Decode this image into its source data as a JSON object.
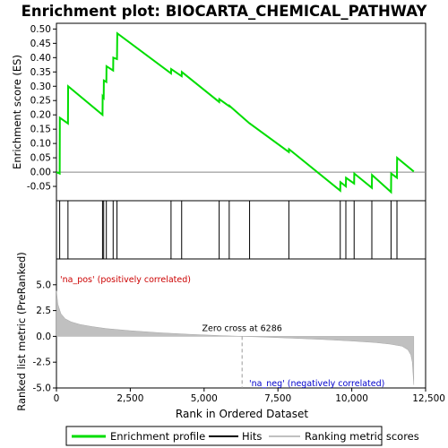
{
  "chart_data": {
    "type": "line",
    "title": "Enrichment plot: BIOCARTA_CHEMICAL_PATHWAY",
    "es_panel": {
      "ylabel": "Enrichment score (ES)",
      "ylim": [
        -0.1,
        0.52
      ],
      "yticks": [
        -0.05,
        0.0,
        0.05,
        0.1,
        0.15,
        0.2,
        0.25,
        0.3,
        0.35,
        0.4,
        0.45,
        0.5
      ],
      "ytick_labels": [
        "-0.05",
        "0.00",
        "0.05",
        "0.10",
        "0.15",
        "0.20",
        "0.25",
        "0.30",
        "0.35",
        "0.40",
        "0.45",
        "0.50"
      ],
      "series": [
        {
          "name": "Enrichment profile",
          "color": "#00dd00",
          "x": [
            0,
            110,
            115,
            390,
            395,
            1560,
            1565,
            1600,
            1605,
            1690,
            1695,
            1920,
            1925,
            2050,
            2055,
            2060,
            3880,
            3885,
            4240,
            4245,
            5510,
            5515,
            5850,
            5855,
            6540,
            6545,
            7870,
            7875,
            9610,
            9615,
            9800,
            9805,
            10080,
            10085,
            10680,
            10685,
            11330,
            11335,
            11530,
            11535,
            12100
          ],
          "y": [
            0.0,
            -0.005,
            0.19,
            0.17,
            0.3,
            0.2,
            0.265,
            0.26,
            0.32,
            0.315,
            0.37,
            0.355,
            0.4,
            0.395,
            0.44,
            0.485,
            0.345,
            0.36,
            0.335,
            0.35,
            0.245,
            0.255,
            0.23,
            0.232,
            0.17,
            0.17,
            0.07,
            0.08,
            -0.065,
            -0.035,
            -0.05,
            -0.02,
            -0.04,
            -0.005,
            -0.055,
            -0.01,
            -0.07,
            -0.005,
            -0.02,
            0.05,
            0.002
          ]
        }
      ]
    },
    "hits_panel": {
      "series_name": "Hits",
      "hit_positions": [
        110,
        390,
        1560,
        1600,
        1690,
        1920,
        2050,
        3880,
        4240,
        5510,
        5850,
        6540,
        7870,
        9610,
        9800,
        10080,
        10680,
        11330,
        11530
      ]
    },
    "rank_panel": {
      "ylabel": "Ranked list metric (PreRanked)",
      "xlabel": "Rank in Ordered Dataset",
      "xlim": [
        0,
        12500
      ],
      "xticks": [
        0,
        2500,
        5000,
        7500,
        10000,
        12500
      ],
      "xtick_labels": [
        "0",
        "2,500",
        "5,000",
        "7,500",
        "10,000",
        "12,500"
      ],
      "ylim": [
        -5.0,
        7.5
      ],
      "yticks": [
        -5.0,
        -2.5,
        0.0,
        2.5,
        5.0
      ],
      "ytick_labels": [
        "-5.0",
        "-2.5",
        "0.0",
        "2.5",
        "5.0"
      ],
      "series_name": "Ranking metric scores",
      "x": [
        0,
        50,
        150,
        300,
        500,
        800,
        1200,
        1700,
        2500,
        3500,
        4500,
        5500,
        6286,
        7000,
        8000,
        9000,
        10000,
        10800,
        11300,
        11700,
        11900,
        12000,
        12050,
        12100
      ],
      "y": [
        4.4,
        3.1,
        2.2,
        1.7,
        1.4,
        1.15,
        0.95,
        0.75,
        0.55,
        0.35,
        0.2,
        0.08,
        0.0,
        -0.07,
        -0.18,
        -0.3,
        -0.45,
        -0.6,
        -0.75,
        -0.95,
        -1.3,
        -1.8,
        -2.5,
        -4.7
      ],
      "zero_cross_label": "Zero cross at 6286",
      "zero_cross_rank": 6286,
      "pos_label": "'na_pos' (positively correlated)",
      "neg_label": "'na_neg' (negatively correlated)"
    },
    "color_bar": {
      "segments": [
        {
          "from": 0,
          "to": 2100,
          "color": "#f03a3a"
        },
        {
          "from": 2100,
          "to": 3050,
          "color": "#f5676f"
        },
        {
          "from": 3050,
          "to": 4500,
          "color": "#f78f97"
        },
        {
          "from": 4500,
          "to": 5600,
          "color": "#f9bddd"
        },
        {
          "from": 5600,
          "to": 6286,
          "color": "#fbd3ee"
        },
        {
          "from": 6286,
          "to": 7400,
          "color": "#e8dcf8"
        },
        {
          "from": 7400,
          "to": 8800,
          "color": "#c6c4f2"
        },
        {
          "from": 8800,
          "to": 9800,
          "color": "#9d98ec"
        },
        {
          "from": 9800,
          "to": 11600,
          "color": "#6a5be4"
        },
        {
          "from": 11600,
          "to": 12100,
          "color": "#3a10cc"
        }
      ]
    },
    "legend": [
      {
        "label": "Enrichment profile",
        "color": "#00dd00"
      },
      {
        "label": "Hits",
        "color": "#000000"
      },
      {
        "label": "Ranking metric scores",
        "color": "#c0c0c0"
      }
    ]
  }
}
